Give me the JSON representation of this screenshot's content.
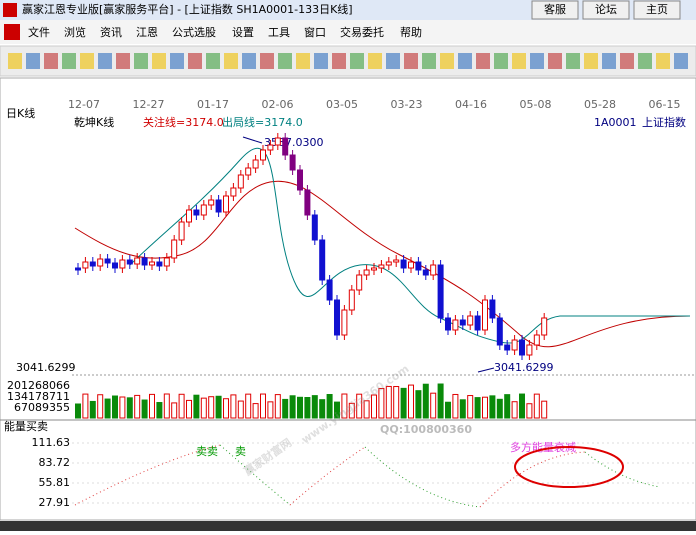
{
  "title_bar": {
    "title": "赢家江恩专业版[赢家服务平台] - [上证指数  SH1A0001-133日K线]",
    "buttons": [
      "客服",
      "论坛",
      "主页"
    ]
  },
  "menu": [
    "文件",
    "浏览",
    "资讯",
    "江恩",
    "公式选股",
    "设置",
    "工具",
    "窗口",
    "交易委托",
    "帮助"
  ],
  "dates": [
    "12-07",
    "12-27",
    "01-17",
    "02-06",
    "03-05",
    "03-23",
    "04-16",
    "05-08",
    "05-28",
    "06-15"
  ],
  "main_panel": {
    "period": "日K线",
    "indicator": "乾坤K线",
    "focus_line": "关注线=3174.0",
    "exit_line": "出局线=3174.0",
    "code": "1A0001",
    "name": "上证指数",
    "high_label": "3587.0300",
    "low_label": "3041.6299",
    "price_axis": "3041.6299"
  },
  "volume_ticks": [
    "201268066",
    "134178711",
    "67089355"
  ],
  "energy_panel": {
    "title": "能量买卖",
    "ticks": [
      "111.63",
      "83.72",
      "55.81",
      "27.91"
    ],
    "signals": [
      "卖卖",
      "卖"
    ],
    "annotation": "多方能量衰减"
  },
  "watermarks": [
    "赢家财富网",
    "www.yingjia360.com",
    "QQ:100800360"
  ]
}
